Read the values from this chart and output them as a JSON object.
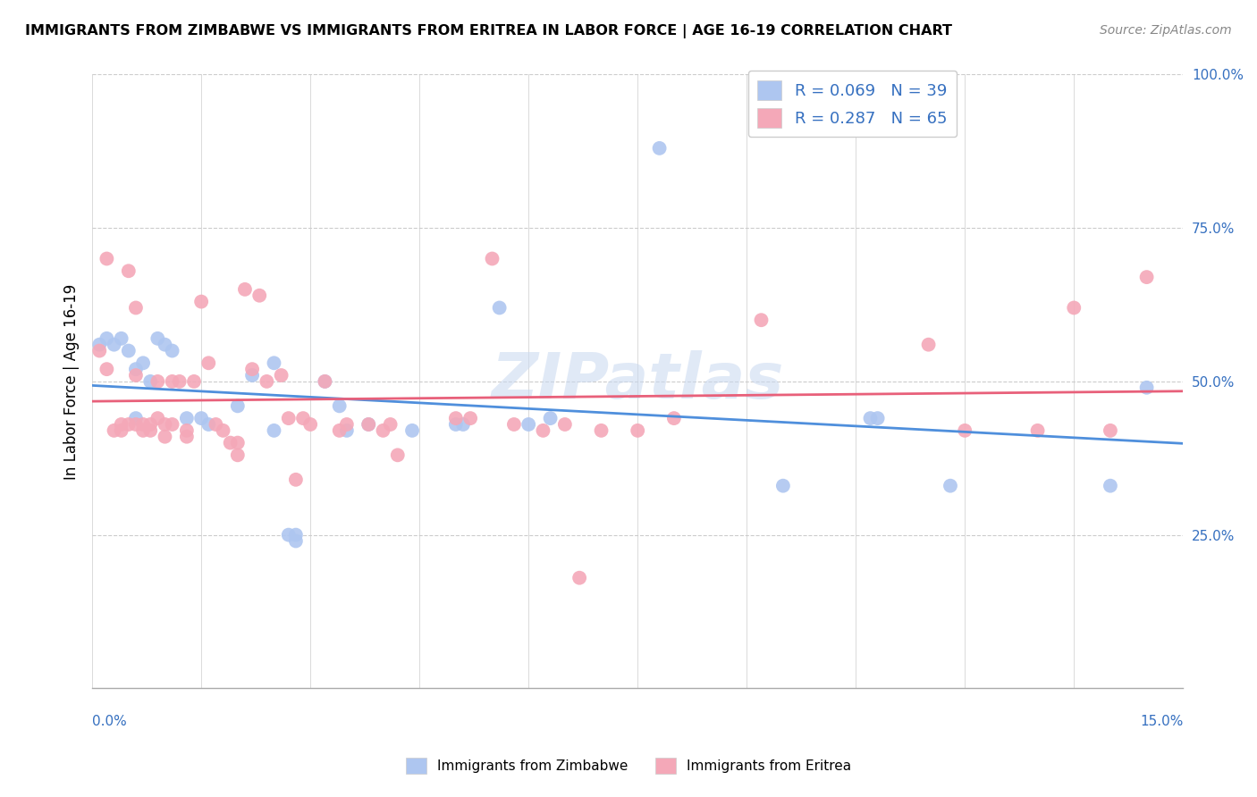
{
  "title": "IMMIGRANTS FROM ZIMBABWE VS IMMIGRANTS FROM ERITREA IN LABOR FORCE | AGE 16-19 CORRELATION CHART",
  "source": "Source: ZipAtlas.com",
  "ylabel": "In Labor Force | Age 16-19",
  "xlim": [
    0.0,
    0.15
  ],
  "ylim": [
    0.0,
    1.0
  ],
  "ytick_vals": [
    0.0,
    0.25,
    0.5,
    0.75,
    1.0
  ],
  "ytick_labels": [
    "",
    "25.0%",
    "50.0%",
    "75.0%",
    "100.0%"
  ],
  "zimbabwe_color": "#aec6f0",
  "eritrea_color": "#f4a8b8",
  "trendline_zimbabwe_color": "#4f8fdc",
  "trendline_eritrea_color": "#e8607a",
  "legend_color": "#3670c0",
  "watermark": "ZIPatlas",
  "zimbabwe_R": 0.069,
  "zimbabwe_N": 39,
  "eritrea_R": 0.287,
  "eritrea_N": 65,
  "zimbabwe_points": [
    [
      0.001,
      0.56
    ],
    [
      0.002,
      0.57
    ],
    [
      0.003,
      0.56
    ],
    [
      0.004,
      0.57
    ],
    [
      0.005,
      0.55
    ],
    [
      0.006,
      0.52
    ],
    [
      0.006,
      0.44
    ],
    [
      0.007,
      0.53
    ],
    [
      0.008,
      0.5
    ],
    [
      0.009,
      0.57
    ],
    [
      0.01,
      0.56
    ],
    [
      0.011,
      0.55
    ],
    [
      0.013,
      0.44
    ],
    [
      0.015,
      0.44
    ],
    [
      0.016,
      0.43
    ],
    [
      0.02,
      0.46
    ],
    [
      0.022,
      0.51
    ],
    [
      0.025,
      0.42
    ],
    [
      0.025,
      0.53
    ],
    [
      0.027,
      0.25
    ],
    [
      0.028,
      0.25
    ],
    [
      0.028,
      0.24
    ],
    [
      0.032,
      0.5
    ],
    [
      0.034,
      0.46
    ],
    [
      0.035,
      0.42
    ],
    [
      0.038,
      0.43
    ],
    [
      0.044,
      0.42
    ],
    [
      0.05,
      0.43
    ],
    [
      0.051,
      0.43
    ],
    [
      0.056,
      0.62
    ],
    [
      0.06,
      0.43
    ],
    [
      0.063,
      0.44
    ],
    [
      0.078,
      0.88
    ],
    [
      0.095,
      0.33
    ],
    [
      0.107,
      0.44
    ],
    [
      0.108,
      0.44
    ],
    [
      0.118,
      0.33
    ],
    [
      0.14,
      0.33
    ],
    [
      0.145,
      0.49
    ]
  ],
  "eritrea_points": [
    [
      0.001,
      0.55
    ],
    [
      0.002,
      0.52
    ],
    [
      0.002,
      0.7
    ],
    [
      0.003,
      0.42
    ],
    [
      0.004,
      0.43
    ],
    [
      0.004,
      0.42
    ],
    [
      0.005,
      0.68
    ],
    [
      0.005,
      0.43
    ],
    [
      0.006,
      0.51
    ],
    [
      0.006,
      0.62
    ],
    [
      0.006,
      0.43
    ],
    [
      0.007,
      0.43
    ],
    [
      0.007,
      0.42
    ],
    [
      0.008,
      0.43
    ],
    [
      0.008,
      0.42
    ],
    [
      0.009,
      0.5
    ],
    [
      0.009,
      0.44
    ],
    [
      0.01,
      0.43
    ],
    [
      0.01,
      0.41
    ],
    [
      0.011,
      0.5
    ],
    [
      0.011,
      0.43
    ],
    [
      0.012,
      0.5
    ],
    [
      0.013,
      0.42
    ],
    [
      0.013,
      0.41
    ],
    [
      0.014,
      0.5
    ],
    [
      0.015,
      0.63
    ],
    [
      0.016,
      0.53
    ],
    [
      0.017,
      0.43
    ],
    [
      0.018,
      0.42
    ],
    [
      0.019,
      0.4
    ],
    [
      0.02,
      0.4
    ],
    [
      0.02,
      0.38
    ],
    [
      0.021,
      0.65
    ],
    [
      0.022,
      0.52
    ],
    [
      0.023,
      0.64
    ],
    [
      0.024,
      0.5
    ],
    [
      0.026,
      0.51
    ],
    [
      0.027,
      0.44
    ],
    [
      0.028,
      0.34
    ],
    [
      0.029,
      0.44
    ],
    [
      0.03,
      0.43
    ],
    [
      0.032,
      0.5
    ],
    [
      0.034,
      0.42
    ],
    [
      0.035,
      0.43
    ],
    [
      0.038,
      0.43
    ],
    [
      0.04,
      0.42
    ],
    [
      0.041,
      0.43
    ],
    [
      0.042,
      0.38
    ],
    [
      0.05,
      0.44
    ],
    [
      0.052,
      0.44
    ],
    [
      0.055,
      0.7
    ],
    [
      0.058,
      0.43
    ],
    [
      0.062,
      0.42
    ],
    [
      0.065,
      0.43
    ],
    [
      0.067,
      0.18
    ],
    [
      0.07,
      0.42
    ],
    [
      0.075,
      0.42
    ],
    [
      0.08,
      0.44
    ],
    [
      0.092,
      0.6
    ],
    [
      0.115,
      0.56
    ],
    [
      0.12,
      0.42
    ],
    [
      0.13,
      0.42
    ],
    [
      0.135,
      0.62
    ],
    [
      0.14,
      0.42
    ],
    [
      0.145,
      0.67
    ]
  ]
}
